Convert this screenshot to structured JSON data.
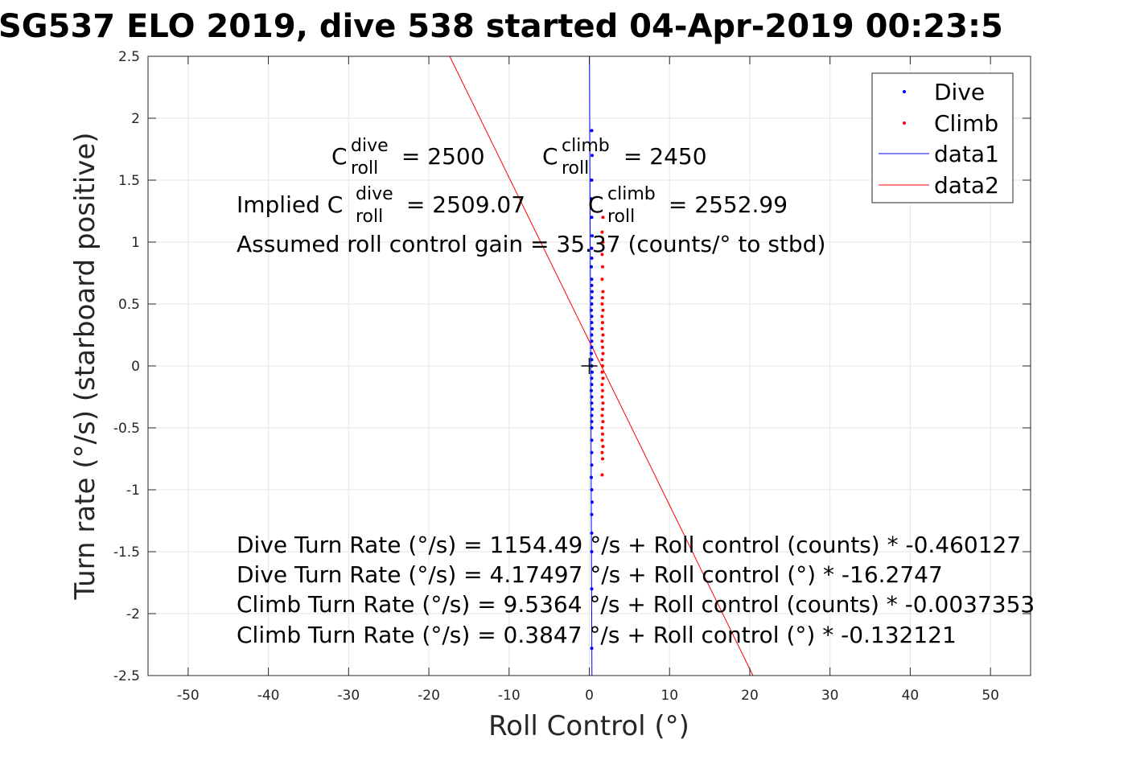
{
  "chart_data": {
    "type": "scatter",
    "title": "SG537 ELO 2019, dive 538 started 04-Apr-2019 00:23:5",
    "xlabel": "Roll Control (°)",
    "ylabel": "Turn rate (°/s) (starboard positive)",
    "xlim": [
      -55,
      55
    ],
    "ylim": [
      -2.5,
      2.5
    ],
    "xticks": [
      -50,
      -40,
      -30,
      -20,
      -10,
      0,
      10,
      20,
      30,
      40,
      50
    ],
    "xtick_labels": [
      "-50",
      "-40",
      "-30",
      "-20",
      "-10",
      "0",
      "10",
      "20",
      "30",
      "40",
      "50"
    ],
    "yticks": [
      -2.5,
      -2,
      -1.5,
      -1,
      -0.5,
      0,
      0.5,
      1,
      1.5,
      2,
      2.5
    ],
    "ytick_labels": [
      "-2.5",
      "-2",
      "-1.5",
      "-1",
      "-0.5",
      "0",
      "0.5",
      "1",
      "1.5",
      "2",
      "2.5"
    ],
    "grid": true,
    "legend_position": "top-right",
    "legend": [
      "Dive",
      "Climb",
      "data1",
      "data2"
    ],
    "colors": {
      "dive": "#0000ff",
      "climb": "#ff0000",
      "axis": "#262626",
      "grid": "#e6e6e6"
    },
    "series": [
      {
        "name": "Dive",
        "marker": "dot",
        "x": [
          0.3,
          0.35,
          0.3,
          0.25,
          0.3,
          0.35,
          0.3,
          0.3,
          0.25,
          0.3,
          0.3,
          0.35,
          0.3,
          0.3,
          0.25,
          0.3,
          0.3,
          0.35,
          0.3,
          0.3,
          0.3,
          0.25,
          0.3,
          0.3,
          0.35,
          0.3,
          0.3,
          0.25,
          0.3,
          0.3,
          0.35,
          0.3,
          0.3,
          0.3,
          0.3,
          0.3,
          0.3,
          0.25,
          0.3,
          0.35,
          0.3,
          0.3,
          0.3,
          0.3,
          0.3
        ],
        "y": [
          1.9,
          1.7,
          1.5,
          1.35,
          1.2,
          1.05,
          0.95,
          0.87,
          0.8,
          0.7,
          0.65,
          0.6,
          0.55,
          0.5,
          0.45,
          0.4,
          0.35,
          0.3,
          0.25,
          0.2,
          0.15,
          0.1,
          0.05,
          0.0,
          -0.05,
          -0.1,
          -0.15,
          -0.2,
          -0.25,
          -0.3,
          -0.35,
          -0.4,
          -0.45,
          -0.5,
          -0.6,
          -0.7,
          -0.8,
          -0.9,
          -1.0,
          -1.1,
          -1.2,
          -1.35,
          -1.5,
          -1.8,
          -2.28
        ]
      },
      {
        "name": "Climb",
        "marker": "dot",
        "x": [
          1.6,
          1.7,
          1.6,
          1.65,
          1.6,
          1.7,
          1.65,
          1.6,
          1.7,
          1.6,
          1.65,
          1.6,
          1.7,
          1.6,
          1.65,
          1.7,
          1.6,
          1.65,
          1.6,
          1.7,
          1.6,
          1.65,
          1.6,
          1.7,
          1.65,
          1.6,
          1.7,
          1.6,
          1.65,
          1.6,
          1.7,
          1.6,
          1.65,
          1.6,
          1.7
        ],
        "y": [
          1.08,
          1.0,
          0.9,
          0.8,
          0.7,
          0.6,
          0.55,
          0.5,
          0.45,
          0.4,
          0.35,
          0.3,
          0.25,
          0.2,
          0.15,
          0.1,
          0.05,
          0.0,
          -0.05,
          -0.1,
          -0.15,
          -0.2,
          -0.25,
          -0.3,
          -0.35,
          -0.4,
          -0.45,
          -0.5,
          -0.55,
          -0.6,
          -0.65,
          -0.7,
          -0.75,
          -0.88,
          1.2
        ]
      },
      {
        "name": "data1",
        "type": "line",
        "x": [
          0.33,
          0.02
        ],
        "y": [
          -2.5,
          2.5
        ]
      },
      {
        "name": "data2",
        "type": "line",
        "x": [
          20.4,
          -17.4
        ],
        "y": [
          -2.5,
          2.5
        ]
      }
    ],
    "marker_cross": {
      "x": 0,
      "y": 0
    },
    "annotations": {
      "crol_dive": {
        "prefix": "C",
        "sup": "dive",
        "sub": "roll",
        "suffix": " = 2500"
      },
      "crol_climb": {
        "prefix": "C",
        "sup": "climb",
        "sub": "roll",
        "suffix": " = 2450"
      },
      "implied_dive": {
        "prefix": "Implied C",
        "sup": "dive",
        "sub": "roll",
        "suffix": " = 2509.07"
      },
      "implied_climb": {
        "prefix": "C",
        "sup": "climb",
        "sub": "roll",
        "suffix": " = 2552.99"
      },
      "gain": "Assumed roll control gain = 35.37 (counts/° to stbd)",
      "eq1": "Dive Turn Rate (°/s) = 1154.49 °/s + Roll control (counts) * -0.460127",
      "eq2": "Dive Turn Rate (°/s) = 4.17497 °/s + Roll control (°) * -16.2747",
      "eq3": "Climb Turn Rate (°/s) = 9.5364 °/s + Roll control (counts) * -0.0037353",
      "eq4": "Climb Turn Rate (°/s) = 0.3847 °/s + Roll control (°) * -0.132121"
    }
  }
}
